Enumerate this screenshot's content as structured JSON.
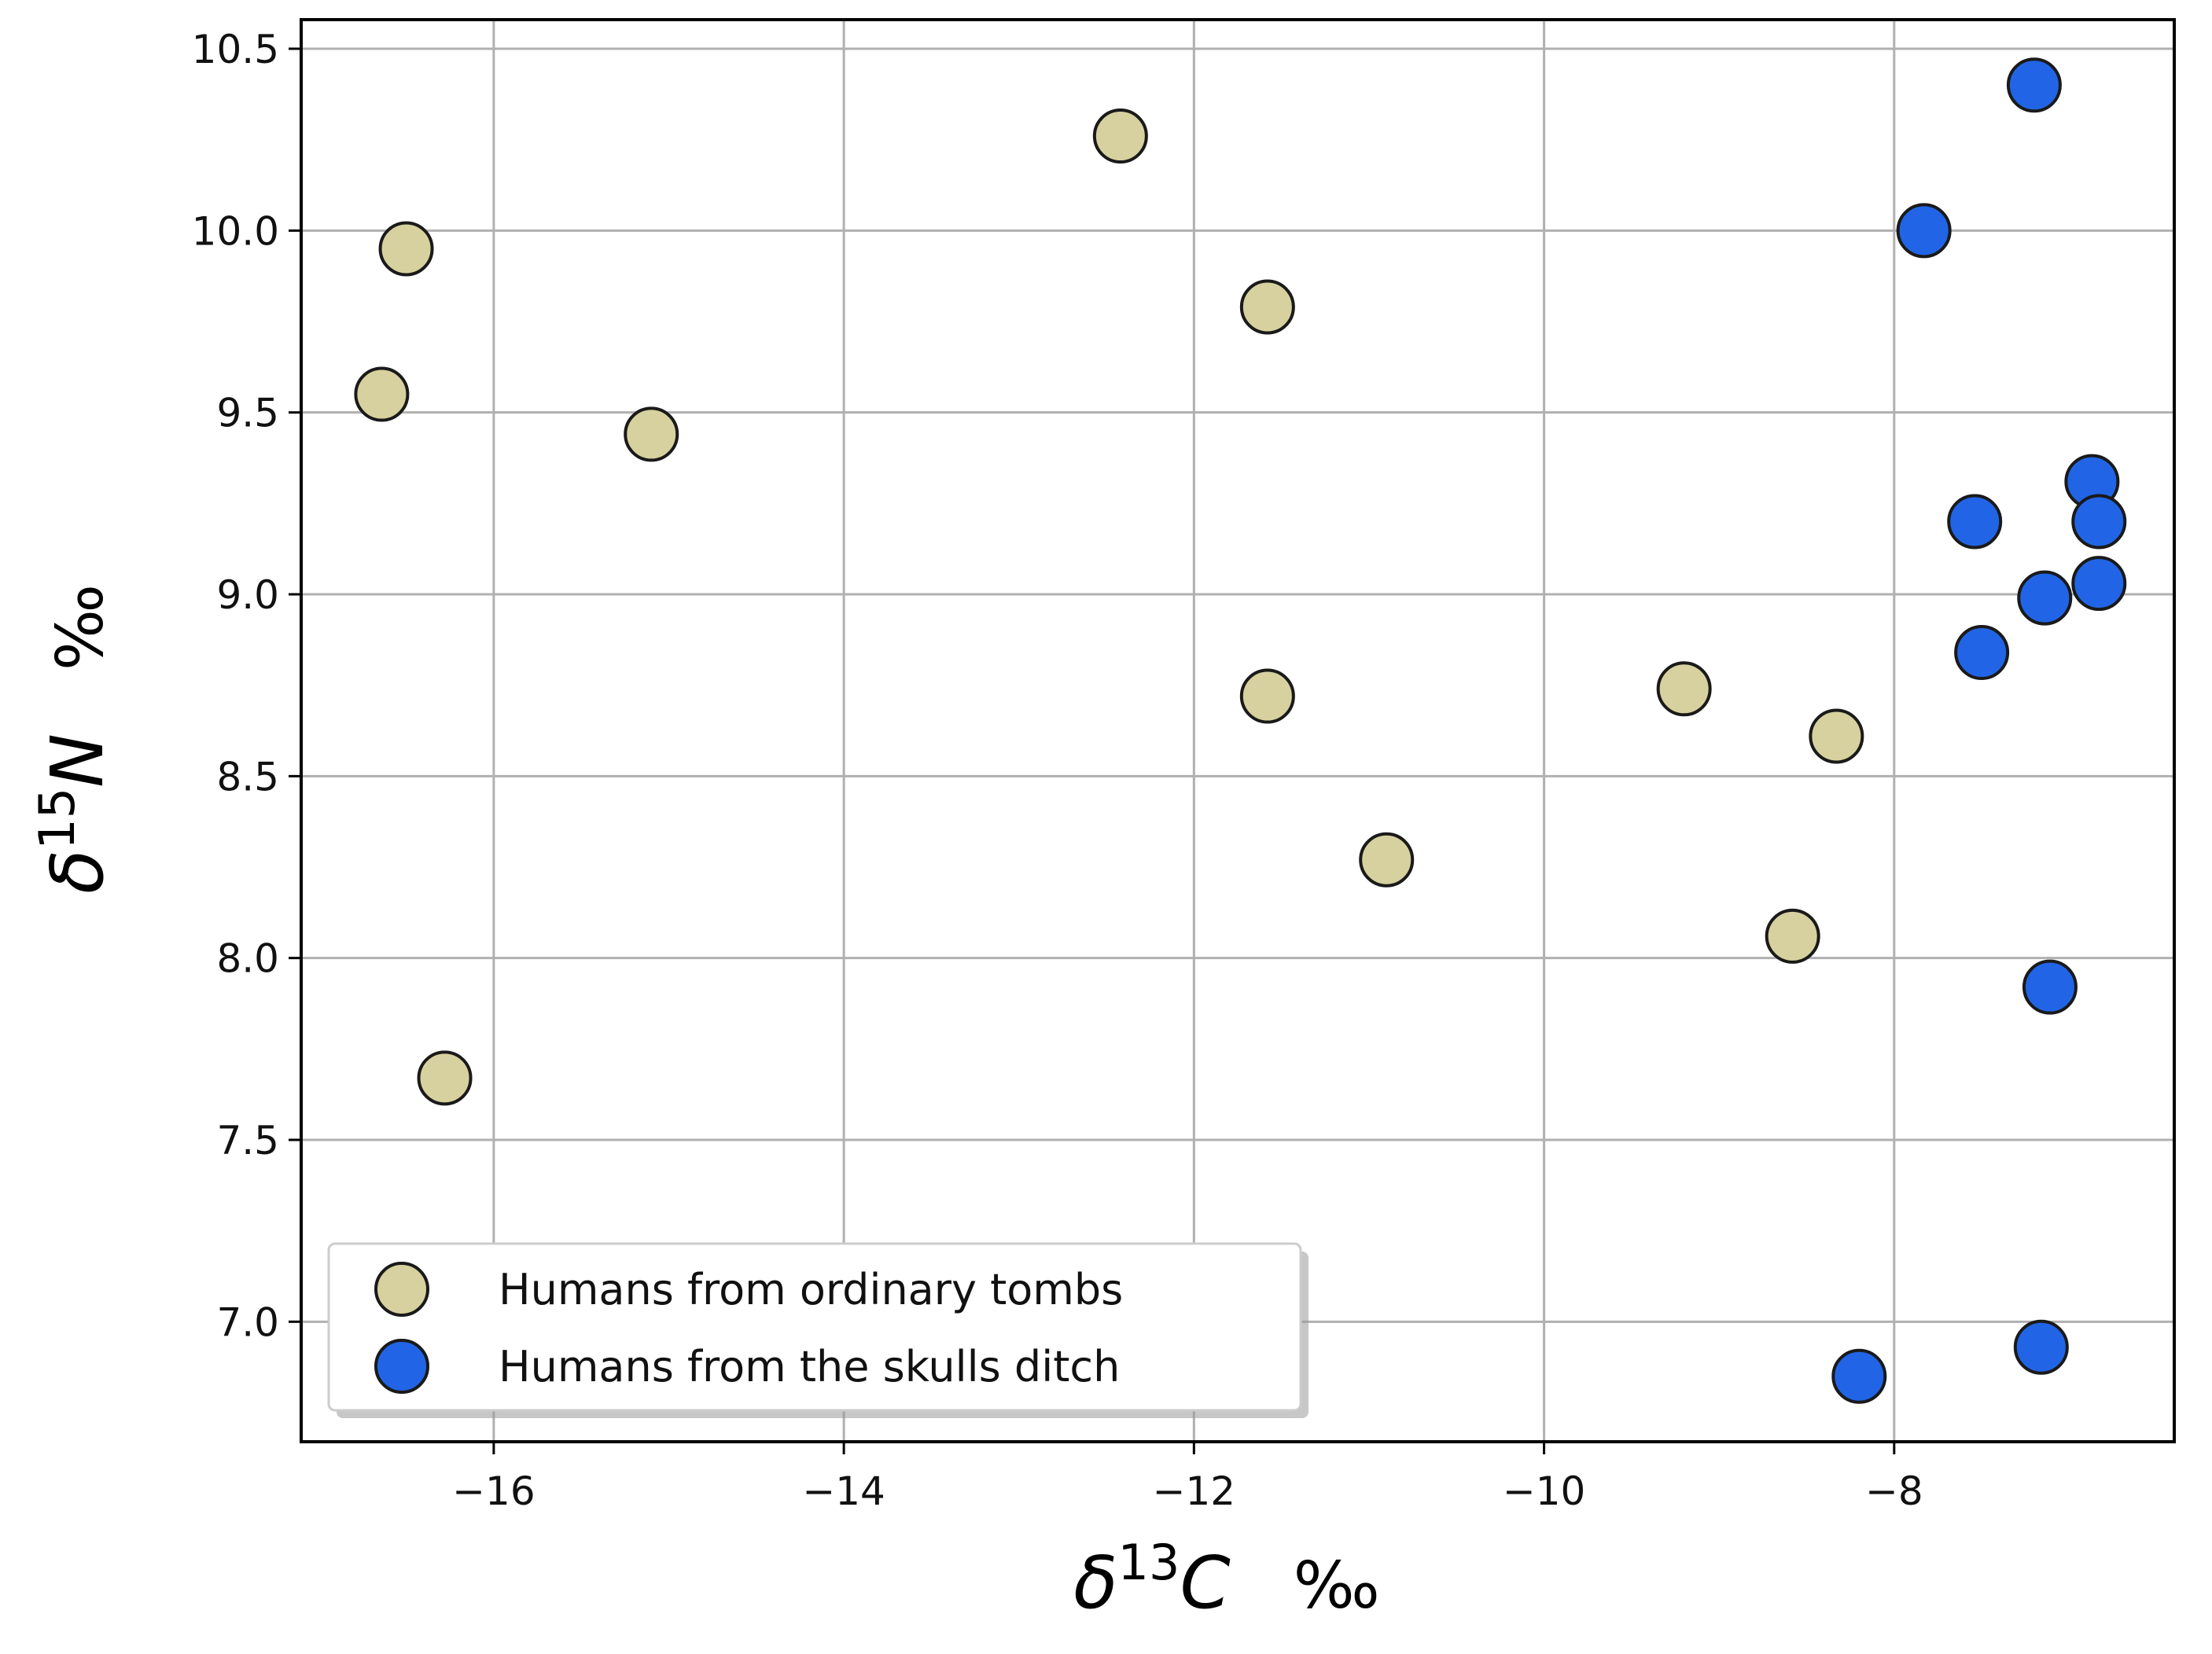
{
  "chart_data": {
    "type": "scatter",
    "xlabel": {
      "symbol": "δ",
      "superscript": "13",
      "letter": "C",
      "unit": "‰"
    },
    "ylabel": {
      "symbol": "δ",
      "superscript": "15",
      "letter": "N",
      "unit": "‰"
    },
    "xlim": [
      -17.1,
      -6.4
    ],
    "ylim": [
      6.67,
      10.58
    ],
    "xticks": [
      -16,
      -14,
      -12,
      -10,
      -8
    ],
    "xtick_labels": [
      "−16",
      "−14",
      "−12",
      "−10",
      "−8"
    ],
    "yticks": [
      7.0,
      7.5,
      8.0,
      8.5,
      9.0,
      9.5,
      10.0,
      10.5
    ],
    "ytick_labels": [
      "7.0",
      "7.5",
      "8.0",
      "8.5",
      "9.0",
      "9.5",
      "10.0",
      "10.5"
    ],
    "grid": true,
    "legend_position": "lower-left",
    "series": [
      {
        "name": "Humans from ordinary tombs",
        "color": "#d6d19e",
        "points": [
          {
            "x": -16.5,
            "y": 9.95
          },
          {
            "x": -16.64,
            "y": 9.55
          },
          {
            "x": -15.1,
            "y": 9.44
          },
          {
            "x": -16.28,
            "y": 7.67
          },
          {
            "x": -12.42,
            "y": 10.26
          },
          {
            "x": -11.58,
            "y": 9.79
          },
          {
            "x": -11.58,
            "y": 8.72
          },
          {
            "x": -10.9,
            "y": 8.27
          },
          {
            "x": -9.2,
            "y": 8.74
          },
          {
            "x": -8.33,
            "y": 8.61
          },
          {
            "x": -8.58,
            "y": 8.06
          }
        ]
      },
      {
        "name": "Humans from the skulls ditch",
        "color": "#2165e6",
        "points": [
          {
            "x": -7.2,
            "y": 10.4
          },
          {
            "x": -7.83,
            "y": 10.0
          },
          {
            "x": -6.87,
            "y": 9.31
          },
          {
            "x": -6.83,
            "y": 9.2
          },
          {
            "x": -7.54,
            "y": 9.2
          },
          {
            "x": -6.83,
            "y": 9.03
          },
          {
            "x": -7.14,
            "y": 8.99
          },
          {
            "x": -7.5,
            "y": 8.84
          },
          {
            "x": -7.11,
            "y": 7.92
          },
          {
            "x": -7.16,
            "y": 6.93
          },
          {
            "x": -8.2,
            "y": 6.85
          }
        ]
      }
    ]
  }
}
